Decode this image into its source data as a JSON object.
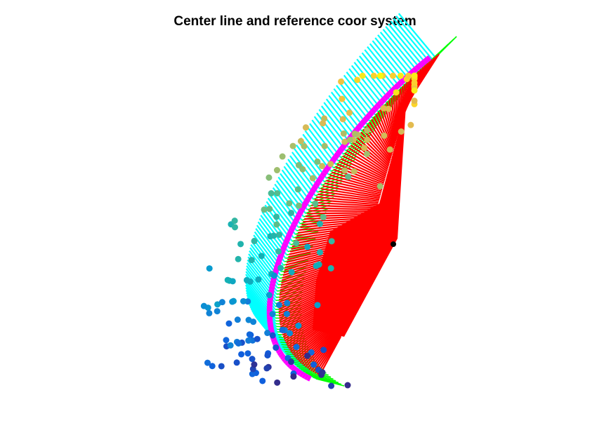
{
  "chart_data": {
    "type": "scatter",
    "title": "Center line and reference coor system",
    "axes_visible": false,
    "colormap": "parula",
    "colors": {
      "center_line": "#ff00ff",
      "tangent_vectors": "#00ffff",
      "normal_vectors": "#00ff00",
      "binormal_surface": "#ff0000",
      "origin": "#000000"
    },
    "points_count": 180
  }
}
